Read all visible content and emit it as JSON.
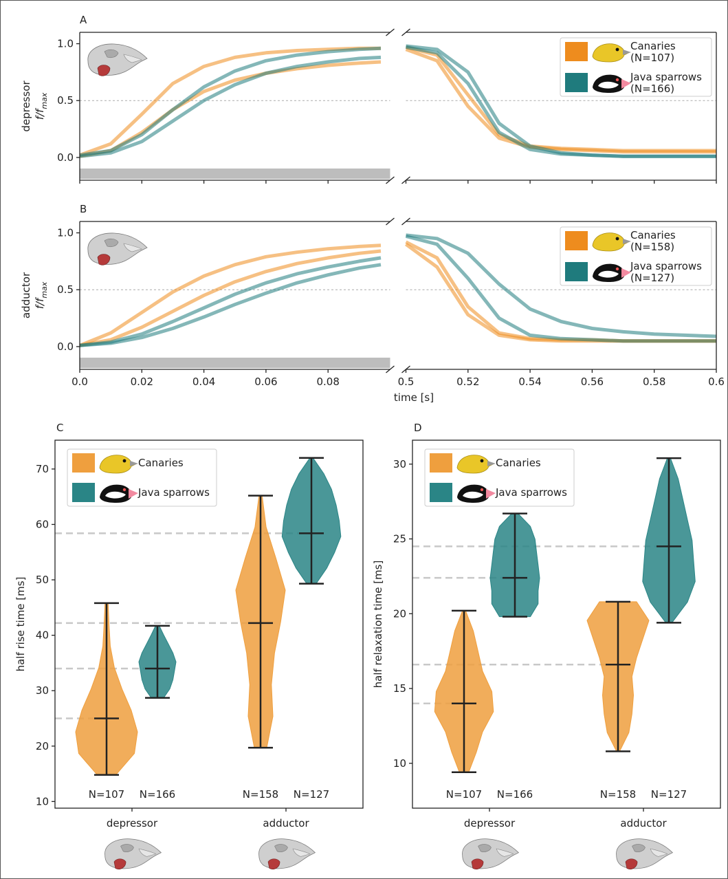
{
  "chart_data": [
    {
      "type": "line",
      "panel": "A",
      "ylabel": "depressor",
      "ylabel_math": "f/f",
      "ylabel_sub": "max",
      "xlim_segments": [
        [
          0,
          0.1
        ],
        [
          0.5,
          0.6
        ]
      ],
      "ylim": [
        -0.2,
        1.1
      ],
      "xticks": [
        0,
        0.02,
        0.04,
        0.06,
        0.08,
        0.5,
        0.52,
        0.54,
        0.56,
        0.58,
        0.6
      ],
      "show_xtick_labels": false,
      "yticks": [
        {
          "value": 0,
          "label": "0.0"
        },
        0.5,
        {
          "value": 1,
          "label": "1.0"
        }
      ],
      "hline": 0.5,
      "legend": "upper right",
      "x_rise": [
        0,
        0.01,
        0.02,
        0.03,
        0.04,
        0.05,
        0.06,
        0.07,
        0.08,
        0.09,
        0.097
      ],
      "x_fall": [
        0.5,
        0.51,
        0.52,
        0.53,
        0.54,
        0.55,
        0.56,
        0.57,
        0.58,
        0.59,
        0.6
      ],
      "series": [
        {
          "name": "Canaries",
          "count_label": "(N=107)",
          "color": "#ee8c1e",
          "curves": [
            {
              "rise": [
                0.02,
                0.12,
                0.38,
                0.65,
                0.8,
                0.88,
                0.92,
                0.94,
                0.95,
                0.96,
                0.96
              ],
              "fall": [
                0.97,
                0.9,
                0.55,
                0.2,
                0.1,
                0.08,
                0.07,
                0.06,
                0.06,
                0.06,
                0.06
              ]
            },
            {
              "rise": [
                0.01,
                0.06,
                0.22,
                0.42,
                0.58,
                0.68,
                0.74,
                0.78,
                0.81,
                0.83,
                0.84
              ],
              "fall": [
                0.95,
                0.85,
                0.45,
                0.17,
                0.09,
                0.07,
                0.06,
                0.05,
                0.05,
                0.05,
                0.05
              ]
            }
          ]
        },
        {
          "name": "Java sparrows",
          "count_label": "(N=166)",
          "color": "#1f7b7d",
          "curves": [
            {
              "rise": [
                0.02,
                0.06,
                0.2,
                0.42,
                0.62,
                0.76,
                0.85,
                0.9,
                0.93,
                0.95,
                0.96
              ],
              "fall": [
                0.98,
                0.95,
                0.75,
                0.3,
                0.1,
                0.04,
                0.02,
                0.01,
                0.01,
                0.01,
                0.01
              ]
            },
            {
              "rise": [
                0.01,
                0.04,
                0.14,
                0.32,
                0.5,
                0.64,
                0.74,
                0.8,
                0.84,
                0.87,
                0.88
              ],
              "fall": [
                0.97,
                0.92,
                0.65,
                0.22,
                0.07,
                0.03,
                0.02,
                0.01,
                0.01,
                0.01,
                0.01
              ]
            }
          ]
        }
      ]
    },
    {
      "type": "line",
      "panel": "B",
      "ylabel": "adductor",
      "ylabel_math": "f/f",
      "ylabel_sub": "max",
      "xlabel": "time [s]",
      "xlim_segments": [
        [
          0,
          0.1
        ],
        [
          0.5,
          0.6
        ]
      ],
      "ylim": [
        -0.2,
        1.1
      ],
      "xticks": [
        {
          "value": 0,
          "label": "0.0"
        },
        0.02,
        0.04,
        0.06,
        0.08,
        0.5,
        0.52,
        0.54,
        0.56,
        0.58,
        0.6
      ],
      "show_xtick_labels": true,
      "yticks": [
        {
          "value": 0,
          "label": "0.0"
        },
        0.5,
        {
          "value": 1,
          "label": "1.0"
        }
      ],
      "hline": 0.5,
      "legend": "upper right",
      "x_rise": [
        0,
        0.01,
        0.02,
        0.03,
        0.04,
        0.05,
        0.06,
        0.07,
        0.08,
        0.09,
        0.097
      ],
      "x_fall": [
        0.5,
        0.51,
        0.52,
        0.53,
        0.54,
        0.55,
        0.56,
        0.57,
        0.58,
        0.59,
        0.6
      ],
      "series": [
        {
          "name": "Canaries",
          "count_label": "(N=158)",
          "color": "#ee8c1e",
          "curves": [
            {
              "rise": [
                0.01,
                0.12,
                0.3,
                0.48,
                0.62,
                0.72,
                0.79,
                0.83,
                0.86,
                0.88,
                0.89
              ],
              "fall": [
                0.92,
                0.78,
                0.35,
                0.12,
                0.07,
                0.06,
                0.06,
                0.05,
                0.05,
                0.05,
                0.05
              ]
            },
            {
              "rise": [
                0.01,
                0.06,
                0.17,
                0.31,
                0.45,
                0.57,
                0.66,
                0.73,
                0.78,
                0.82,
                0.84
              ],
              "fall": [
                0.9,
                0.7,
                0.28,
                0.1,
                0.06,
                0.05,
                0.05,
                0.05,
                0.05,
                0.05,
                0.05
              ]
            }
          ]
        },
        {
          "name": "Java sparrows",
          "count_label": "(N=127)",
          "color": "#1f7b7d",
          "curves": [
            {
              "rise": [
                0.01,
                0.04,
                0.11,
                0.22,
                0.34,
                0.46,
                0.56,
                0.64,
                0.7,
                0.75,
                0.78
              ],
              "fall": [
                0.97,
                0.9,
                0.6,
                0.25,
                0.1,
                0.07,
                0.06,
                0.05,
                0.05,
                0.05,
                0.05
              ]
            },
            {
              "rise": [
                0.01,
                0.03,
                0.08,
                0.16,
                0.26,
                0.37,
                0.47,
                0.56,
                0.63,
                0.69,
                0.72
              ],
              "fall": [
                0.98,
                0.95,
                0.82,
                0.55,
                0.33,
                0.22,
                0.16,
                0.13,
                0.11,
                0.1,
                0.09
              ]
            }
          ]
        }
      ]
    },
    {
      "type": "violin",
      "panel": "C",
      "ylabel": "half rise time [ms]",
      "ylim": [
        8.8,
        75.2
      ],
      "yticks": [
        10,
        20,
        30,
        40,
        50,
        60,
        70
      ],
      "categories": [
        "depressor",
        "adductor"
      ],
      "legend": "upper left",
      "series": [
        {
          "name": "Canaries",
          "color": "#ef9f3e",
          "violins": [
            {
              "min": 14.8,
              "max": 45.8,
              "median": 25,
              "count_label": "N=107",
              "density": [
                0.3,
                0.9,
                1.0,
                0.8,
                0.5,
                0.25,
                0.12,
                0.08,
                0.05
              ]
            },
            {
              "min": 19.7,
              "max": 65.2,
              "median": 42.2,
              "count_label": "N=158",
              "density": [
                0.2,
                0.4,
                0.35,
                0.45,
                0.65,
                0.8,
                0.5,
                0.18,
                0.05
              ]
            }
          ]
        },
        {
          "name": "Java sparrows",
          "color": "#2a8586",
          "violins": [
            {
              "min": 28.7,
              "max": 41.7,
              "median": 34,
              "count_label": "N=166",
              "density": [
                0.2,
                0.4,
                0.5,
                0.55,
                0.6,
                0.5,
                0.35,
                0.2,
                0.06
              ]
            },
            {
              "min": 49.3,
              "max": 72,
              "median": 58.4,
              "count_label": "N=127",
              "density": [
                0.15,
                0.5,
                0.75,
                0.95,
                0.9,
                0.8,
                0.65,
                0.4,
                0.05
              ]
            }
          ]
        }
      ]
    },
    {
      "type": "violin",
      "panel": "D",
      "ylabel": "half relaxation time [ms]",
      "ylim": [
        7,
        31.6
      ],
      "yticks": [
        10,
        15,
        20,
        25,
        30
      ],
      "categories": [
        "depressor",
        "adductor"
      ],
      "legend": "upper left",
      "series": [
        {
          "name": "Canaries",
          "color": "#ef9f3e",
          "violins": [
            {
              "min": 9.4,
              "max": 20.2,
              "median": 14,
              "count_label": "N=107",
              "density": [
                0.15,
                0.4,
                0.6,
                0.95,
                0.9,
                0.6,
                0.45,
                0.3,
                0.05
              ]
            },
            {
              "min": 10.8,
              "max": 20.8,
              "median": 16.6,
              "count_label": "N=158",
              "density": [
                0.05,
                0.35,
                0.45,
                0.5,
                0.45,
                0.6,
                0.8,
                1.0,
                0.6
              ]
            }
          ]
        },
        {
          "name": "Java sparrows",
          "color": "#2a8586",
          "violins": [
            {
              "min": 19.8,
              "max": 26.7,
              "median": 22.4,
              "count_label": "N=166",
              "density": [
                0.5,
                0.75,
                0.75,
                0.8,
                0.75,
                0.7,
                0.65,
                0.5,
                0.1
              ]
            },
            {
              "min": 19.4,
              "max": 30.4,
              "median": 24.5,
              "count_label": "N=127",
              "density": [
                0.1,
                0.6,
                0.85,
                0.8,
                0.75,
                0.6,
                0.45,
                0.3,
                0.05
              ]
            }
          ]
        }
      ]
    }
  ]
}
